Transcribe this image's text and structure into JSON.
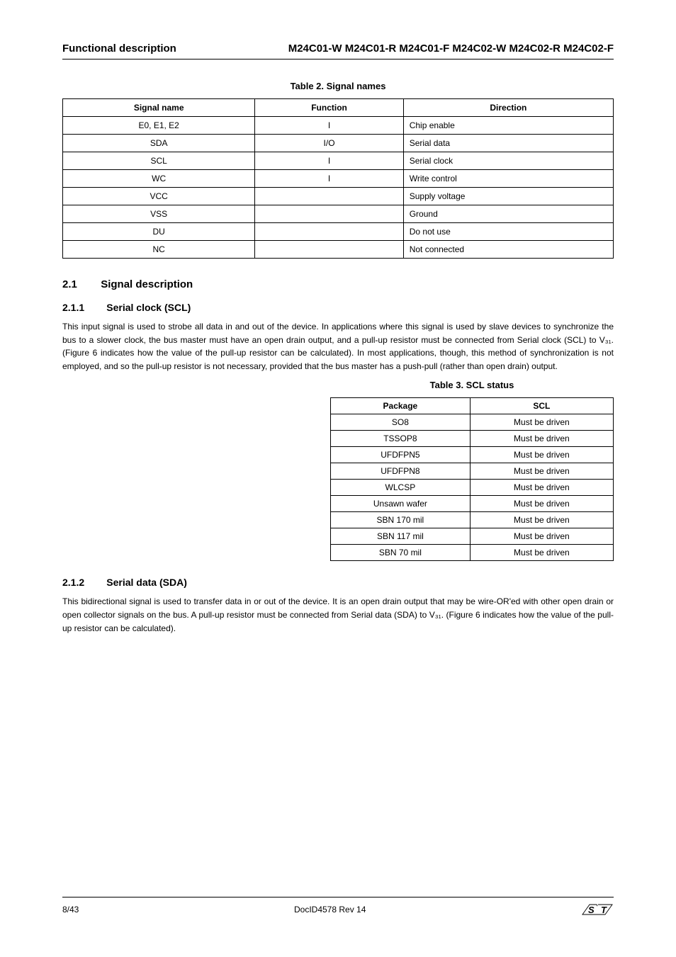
{
  "header": {
    "left": "Functional description",
    "right": "M24C01-W  M24C01-R  M24C01-F  M24C02-W  M24C02-R  M24C02-F"
  },
  "table1": {
    "caption": "Table 2. Signal names",
    "headers": [
      "Signal name",
      "Function",
      "Direction"
    ],
    "rows": [
      [
        "E0, E1, E2",
        "I",
        "Chip enable"
      ],
      [
        "SDA",
        "I/O",
        "Serial data"
      ],
      [
        "SCL",
        "I",
        "Serial clock"
      ],
      [
        "WC",
        "I",
        "Write control"
      ],
      [
        "VCC",
        "",
        "Supply voltage"
      ],
      [
        "VSS",
        "",
        "Ground"
      ],
      [
        "DU",
        "",
        "Do not use"
      ],
      [
        "NC",
        "",
        "Not connected"
      ]
    ]
  },
  "section": {
    "title_num": "2.1",
    "title_text": "Signal description",
    "sub_num": "2.1.1",
    "sub_text": "Serial clock (SCL)",
    "para1": "This input signal is used to strobe all data in and out of the device. In applications where this signal is used by slave devices to synchronize the bus to a slower clock, the bus master must have an open drain output, and a pull-up resistor must be connected from Serial clock (SCL) to V₃₁. (Figure 6 indicates how the value of the pull-up resistor can be calculated). In most applications, though, this method of synchronization is not employed, and so the pull-up resistor is not necessary, provided that the bus master has a push-pull (rather than open drain) output."
  },
  "table2": {
    "caption": "Table 3. SCL status",
    "headers": [
      "Package",
      "SCL"
    ],
    "rows": [
      [
        "SO8",
        "Must be driven"
      ],
      [
        "TSSOP8",
        "Must be driven"
      ],
      [
        "UFDFPN5",
        "Must be driven"
      ],
      [
        "UFDFPN8",
        "Must be driven"
      ],
      [
        "WLCSP",
        "Must be driven"
      ],
      [
        "Unsawn wafer",
        "Must be driven"
      ],
      [
        "SBN 170 mil",
        "Must be driven"
      ],
      [
        "SBN 117 mil",
        "Must be driven"
      ],
      [
        "SBN 70 mil",
        "Must be driven"
      ]
    ]
  },
  "section2": {
    "sub_num": "2.1.2",
    "sub_text": "Serial data (SDA)",
    "para1": "This bidirectional signal is used to transfer data in or out of the device. It is an open drain output that may be wire-OR'ed with other open drain or open collector signals on the bus. A pull-up resistor must be connected from Serial data (SDA) to V₃₁. (Figure 6 indicates how the value of the pull-up resistor can be calculated)."
  },
  "footer": {
    "page": "8/43",
    "docid": "DocID4578 Rev 14"
  }
}
